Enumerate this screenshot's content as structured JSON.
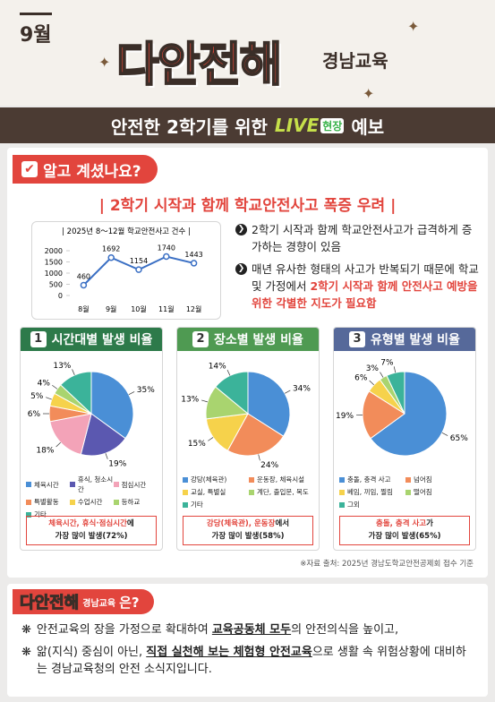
{
  "header": {
    "month": "9월",
    "title": "다안전해",
    "subtitle": "경남교육",
    "banner_before": "안전한 2학기를 위한",
    "banner_live": "LIVE",
    "banner_field": "현장",
    "banner_after": "예보"
  },
  "intro": {
    "tab": "알고 계셨나요?",
    "headline": "| 2학기 시작과 함께 학교안전사고 폭증 우려 |",
    "bullets": [
      {
        "text": "2학기 시작과 함께 학교안전사고가 급격하게 증가하는 경향이 있음"
      },
      {
        "text": "매년 유사한 형태의 사고가 반복되기 때문에 학교 및 가정에서 ",
        "highlight": "2학기 시작과 함께 안전사고 예방을 위한 각별한 지도가 필요함"
      }
    ]
  },
  "chart_data": [
    {
      "type": "line",
      "title": "| 2025년 8～12월 학교안전사고 건수 |",
      "categories": [
        "8월",
        "9월",
        "10월",
        "11월",
        "12월"
      ],
      "values": [
        460,
        1692,
        1154,
        1740,
        1443
      ],
      "color": "#3a6fc4",
      "ylim": [
        0,
        2000
      ],
      "yticks": [
        0,
        500,
        1000,
        1500,
        2000
      ],
      "grid": false
    },
    {
      "type": "pie",
      "number": "1",
      "title": "시간대별 발생 비율",
      "header_color": "#2d7a4a",
      "categories": [
        "체육시간",
        "휴식, 청소시간",
        "점심시간",
        "특별활동",
        "수업시간",
        "등하교",
        "기타"
      ],
      "values": [
        35,
        19,
        18,
        6,
        5,
        4,
        13
      ],
      "value_labels": [
        "35%",
        "19%",
        "18%",
        "6%",
        "5%",
        "4%",
        "13%"
      ],
      "colors": [
        "#4a8fd6",
        "#5b58b0",
        "#f3a3b8",
        "#f28c5a",
        "#f6d24b",
        "#a9d46f",
        "#3bb39a"
      ],
      "summary": {
        "highlight": "체육시간, 휴식·점심시간",
        "rest": "에",
        "line2": "가장 많이 발생(72%)"
      }
    },
    {
      "type": "pie",
      "number": "2",
      "title": "장소별 발생 비율",
      "header_color": "#4f9a52",
      "categories": [
        "강당(체육관)",
        "운동장, 체육시설",
        "교실, 특별실",
        "계단, 출입문, 복도",
        "기타"
      ],
      "values": [
        34,
        24,
        15,
        13,
        14
      ],
      "value_labels": [
        "34%",
        "24%",
        "15%",
        "13%",
        "14%"
      ],
      "colors": [
        "#4a8fd6",
        "#f28c5a",
        "#f6d24b",
        "#a9d46f",
        "#3bb39a"
      ],
      "summary": {
        "highlight": "강당(체육관), 운동장",
        "rest": "에서",
        "line2": "가장 많이 발생(58%)"
      }
    },
    {
      "type": "pie",
      "number": "3",
      "title": "유형별 발생 비율",
      "header_color": "#56699a",
      "categories": [
        "충돌, 충격 사고",
        "넘어짐",
        "베임, 끼임, 찔림",
        "떨어짐",
        "그외"
      ],
      "values": [
        65,
        19,
        6,
        3,
        7
      ],
      "value_labels": [
        "65%",
        "19%",
        "6%",
        "3%",
        "7%"
      ],
      "colors": [
        "#4a8fd6",
        "#f28c5a",
        "#f6d24b",
        "#a9d46f",
        "#3bb39a"
      ],
      "summary": {
        "highlight": "충돌, 충격 사고",
        "rest": "가",
        "line2": "가장 많이 발생(65%)"
      }
    }
  ],
  "source": "※자료 출처: 2025년 경남도학교안전공제회 접수 기준",
  "about": {
    "tab_title": "다안전해",
    "tab_subtitle": "경남교육",
    "tab_suffix": "은?",
    "bullets": [
      {
        "before": "안전교육의 장을 가정으로 확대하여 ",
        "emphasis": "교육공동체 모두",
        "after": "의 안전의식을 높이고,"
      },
      {
        "before": "앎(지식) 중심이 아닌, ",
        "emphasis": "직접 실천해 보는 체험형 안전교육",
        "after": "으로 생활 속 위험상황에 대비하는 경남교육청의 안전 소식지입니다."
      }
    ]
  }
}
